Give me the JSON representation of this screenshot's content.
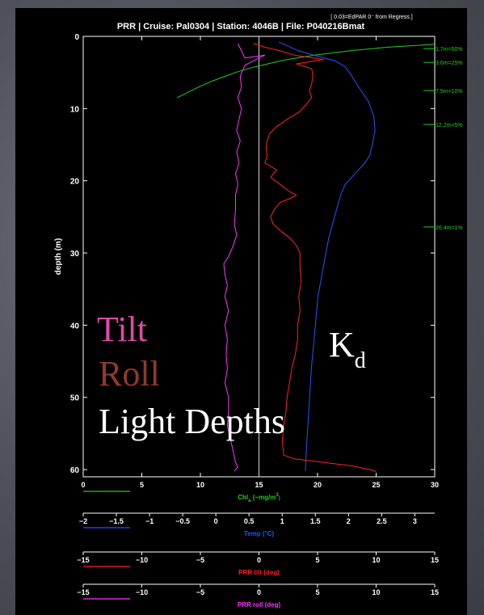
{
  "chart_data": {
    "type": "line",
    "title": "PRR | Cruise: Pal0304 | Station: 4046B | File: P040216Bmat",
    "note": "[ 0.03=EdPAR 0⁻ from Regress.]",
    "ylabel": "depth (m)",
    "ylim": [
      0,
      61
    ],
    "y_ticks": [
      "0",
      "10",
      "20",
      "30",
      "40",
      "50",
      "60"
    ],
    "x_axes": [
      {
        "id": "chl",
        "label_base": "Chl",
        "label_sub": "a",
        "label_rest": " (~mg/m",
        "label_sup": "3",
        "label_end": ")",
        "color": "#22cc22",
        "xlim": [
          0,
          30
        ],
        "ticks": [
          "0",
          "5",
          "10",
          "15",
          "20",
          "25",
          "30"
        ]
      },
      {
        "id": "temp",
        "label": "Temp (°C)",
        "color": "#2255ff",
        "xlim": [
          -2,
          3.3
        ],
        "ticks": [
          "−2",
          "−1.5",
          "−1",
          "−0.5",
          "0",
          "0.5",
          "1",
          "1.5",
          "2",
          "2.5",
          "3"
        ]
      },
      {
        "id": "tilt",
        "label": "PRR tilt (deg)",
        "color": "#ff2222",
        "xlim": [
          -15,
          15
        ],
        "ticks": [
          "−15",
          "−10",
          "−5",
          "0",
          "5",
          "10",
          "15"
        ]
      },
      {
        "id": "roll",
        "label": "PRR roll (deg)",
        "color": "#ff33ff",
        "xlim": [
          -15,
          15
        ],
        "ticks": [
          "−15",
          "−10",
          "−5",
          "0",
          "5",
          "10",
          "15"
        ]
      }
    ],
    "series": [
      {
        "axis": "chl",
        "color": "#22cc22",
        "points": [
          [
            8,
            8.5
          ],
          [
            9,
            7.7
          ],
          [
            10,
            6.9
          ],
          [
            11,
            6.2
          ],
          [
            12,
            5.6
          ],
          [
            13,
            5.0
          ],
          [
            14,
            4.5
          ],
          [
            15,
            4.1
          ],
          [
            16,
            3.7
          ],
          [
            17,
            3.35
          ],
          [
            18,
            3.05
          ],
          [
            19,
            2.8
          ],
          [
            20,
            2.55
          ],
          [
            21,
            2.35
          ],
          [
            22,
            2.15
          ],
          [
            23,
            1.95
          ],
          [
            24,
            1.8
          ],
          [
            25,
            1.65
          ],
          [
            26,
            1.5
          ],
          [
            27,
            1.4
          ],
          [
            28,
            1.3
          ],
          [
            29,
            1.2
          ],
          [
            30,
            1.1
          ]
        ]
      },
      {
        "axis": "temp",
        "color": "#2255ff",
        "points": [
          [
            0.95,
            0.8
          ],
          [
            1.25,
            2.0
          ],
          [
            1.55,
            2.8
          ],
          [
            1.8,
            3.4
          ],
          [
            1.95,
            4.2
          ],
          [
            2.05,
            5.5
          ],
          [
            2.15,
            7.0
          ],
          [
            2.3,
            9.0
          ],
          [
            2.38,
            11.0
          ],
          [
            2.4,
            13.0
          ],
          [
            2.36,
            15.0
          ],
          [
            2.32,
            16.5
          ],
          [
            2.25,
            17.5
          ],
          [
            2.15,
            18.5
          ],
          [
            2.05,
            19.5
          ],
          [
            1.95,
            20.5
          ],
          [
            1.88,
            22.0
          ],
          [
            1.82,
            24.0
          ],
          [
            1.76,
            26.0
          ],
          [
            1.7,
            28.0
          ],
          [
            1.66,
            30.0
          ],
          [
            1.62,
            32.0
          ],
          [
            1.58,
            34.0
          ],
          [
            1.54,
            36.0
          ],
          [
            1.52,
            38.0
          ],
          [
            1.5,
            40.0
          ],
          [
            1.47,
            43.0
          ],
          [
            1.44,
            46.0
          ],
          [
            1.42,
            49.0
          ],
          [
            1.4,
            52.0
          ],
          [
            1.38,
            55.0
          ],
          [
            1.36,
            58.0
          ],
          [
            1.35,
            60.2
          ]
        ]
      },
      {
        "axis": "tilt",
        "color": "#ff2222",
        "points": [
          [
            -0.5,
            1.0
          ],
          [
            0.5,
            1.5
          ],
          [
            1.8,
            2.0
          ],
          [
            3.0,
            2.6
          ],
          [
            5.5,
            3.2
          ],
          [
            3.2,
            3.8
          ],
          [
            4.5,
            4.5
          ],
          [
            4.6,
            5.5
          ],
          [
            4.5,
            6.5
          ],
          [
            4.3,
            7.5
          ],
          [
            4.5,
            8.5
          ],
          [
            4.0,
            9.5
          ],
          [
            3.4,
            10.5
          ],
          [
            2.4,
            11.5
          ],
          [
            1.5,
            12.5
          ],
          [
            0.9,
            13.5
          ],
          [
            0.7,
            14.5
          ],
          [
            0.6,
            15.5
          ],
          [
            0.7,
            16.5
          ],
          [
            0.5,
            17.5
          ],
          [
            1.5,
            18.5
          ],
          [
            1.0,
            19.5
          ],
          [
            1.8,
            20.5
          ],
          [
            2.6,
            21.5
          ],
          [
            3.2,
            22.0
          ],
          [
            2.6,
            22.5
          ],
          [
            1.8,
            23.0
          ],
          [
            1.3,
            24.0
          ],
          [
            1.0,
            25.0
          ],
          [
            1.2,
            26.0
          ],
          [
            1.9,
            27.0
          ],
          [
            2.7,
            28.0
          ],
          [
            3.2,
            29.0
          ],
          [
            3.5,
            30.0
          ],
          [
            3.5,
            32.0
          ],
          [
            3.6,
            34.0
          ],
          [
            3.4,
            36.0
          ],
          [
            3.5,
            38.0
          ],
          [
            3.3,
            40.0
          ],
          [
            3.3,
            42.0
          ],
          [
            3.1,
            44.0
          ],
          [
            2.8,
            46.0
          ],
          [
            2.6,
            48.0
          ],
          [
            2.4,
            50.0
          ],
          [
            2.3,
            52.0
          ],
          [
            2.1,
            54.0
          ],
          [
            2.0,
            56.0
          ],
          [
            2.1,
            58.0
          ],
          [
            3.0,
            58.5
          ],
          [
            5.5,
            59.0
          ],
          [
            8.0,
            59.5
          ],
          [
            9.5,
            60.0
          ],
          [
            10.0,
            60.3
          ]
        ]
      },
      {
        "axis": "roll",
        "color": "#ff33ff",
        "points": [
          [
            -1.8,
            1.0
          ],
          [
            -1.5,
            2.0
          ],
          [
            -1.2,
            3.0
          ],
          [
            0.5,
            2.6
          ],
          [
            -1.2,
            4.0
          ],
          [
            -1.6,
            5.5
          ],
          [
            -1.5,
            7.0
          ],
          [
            -1.8,
            8.5
          ],
          [
            -1.5,
            10.0
          ],
          [
            -1.7,
            11.5
          ],
          [
            -1.9,
            13.0
          ],
          [
            -1.6,
            14.5
          ],
          [
            -1.9,
            16.0
          ],
          [
            -1.7,
            17.5
          ],
          [
            -2.0,
            19.0
          ],
          [
            -1.8,
            20.5
          ],
          [
            -2.0,
            22.0
          ],
          [
            -2.0,
            24.0
          ],
          [
            -2.1,
            26.0
          ],
          [
            -1.9,
            27.5
          ],
          [
            -2.2,
            29.0
          ],
          [
            -2.6,
            30.5
          ],
          [
            -3.0,
            31.5
          ],
          [
            -2.9,
            33.0
          ],
          [
            -2.7,
            34.5
          ],
          [
            -2.9,
            36.0
          ],
          [
            -2.6,
            38.0
          ],
          [
            -2.9,
            40.0
          ],
          [
            -2.7,
            42.0
          ],
          [
            -2.8,
            44.0
          ],
          [
            -2.7,
            46.0
          ],
          [
            -2.9,
            48.0
          ],
          [
            -2.6,
            50.0
          ],
          [
            -2.6,
            52.0
          ],
          [
            -2.7,
            54.0
          ],
          [
            -2.4,
            56.0
          ],
          [
            -2.2,
            57.5
          ],
          [
            -2.0,
            59.0
          ],
          [
            -1.8,
            59.6
          ],
          [
            -2.1,
            60.2
          ]
        ]
      }
    ],
    "reference_line_x_chl": 15,
    "light_depth_labels": [
      {
        "depth": 1.7,
        "text": "1.7m=50%"
      },
      {
        "depth": 3.6,
        "text": "3.6m=25%"
      },
      {
        "depth": 7.5,
        "text": "7.5m=10%"
      },
      {
        "depth": 12.2,
        "text": "12.2m=5%"
      },
      {
        "depth": 26.4,
        "text": "26.4m=1%"
      }
    ]
  },
  "annotations": {
    "tilt": {
      "text": "Tilt",
      "color": "#e04aa7"
    },
    "roll": {
      "text": "Roll",
      "color": "#93392a"
    },
    "light_depths": {
      "text": "Light Depths",
      "color": "#ffffff"
    },
    "kd_base": {
      "text": "K",
      "color": "#ffffff"
    },
    "kd_sub": {
      "text": "d",
      "color": "#ffffff"
    }
  }
}
